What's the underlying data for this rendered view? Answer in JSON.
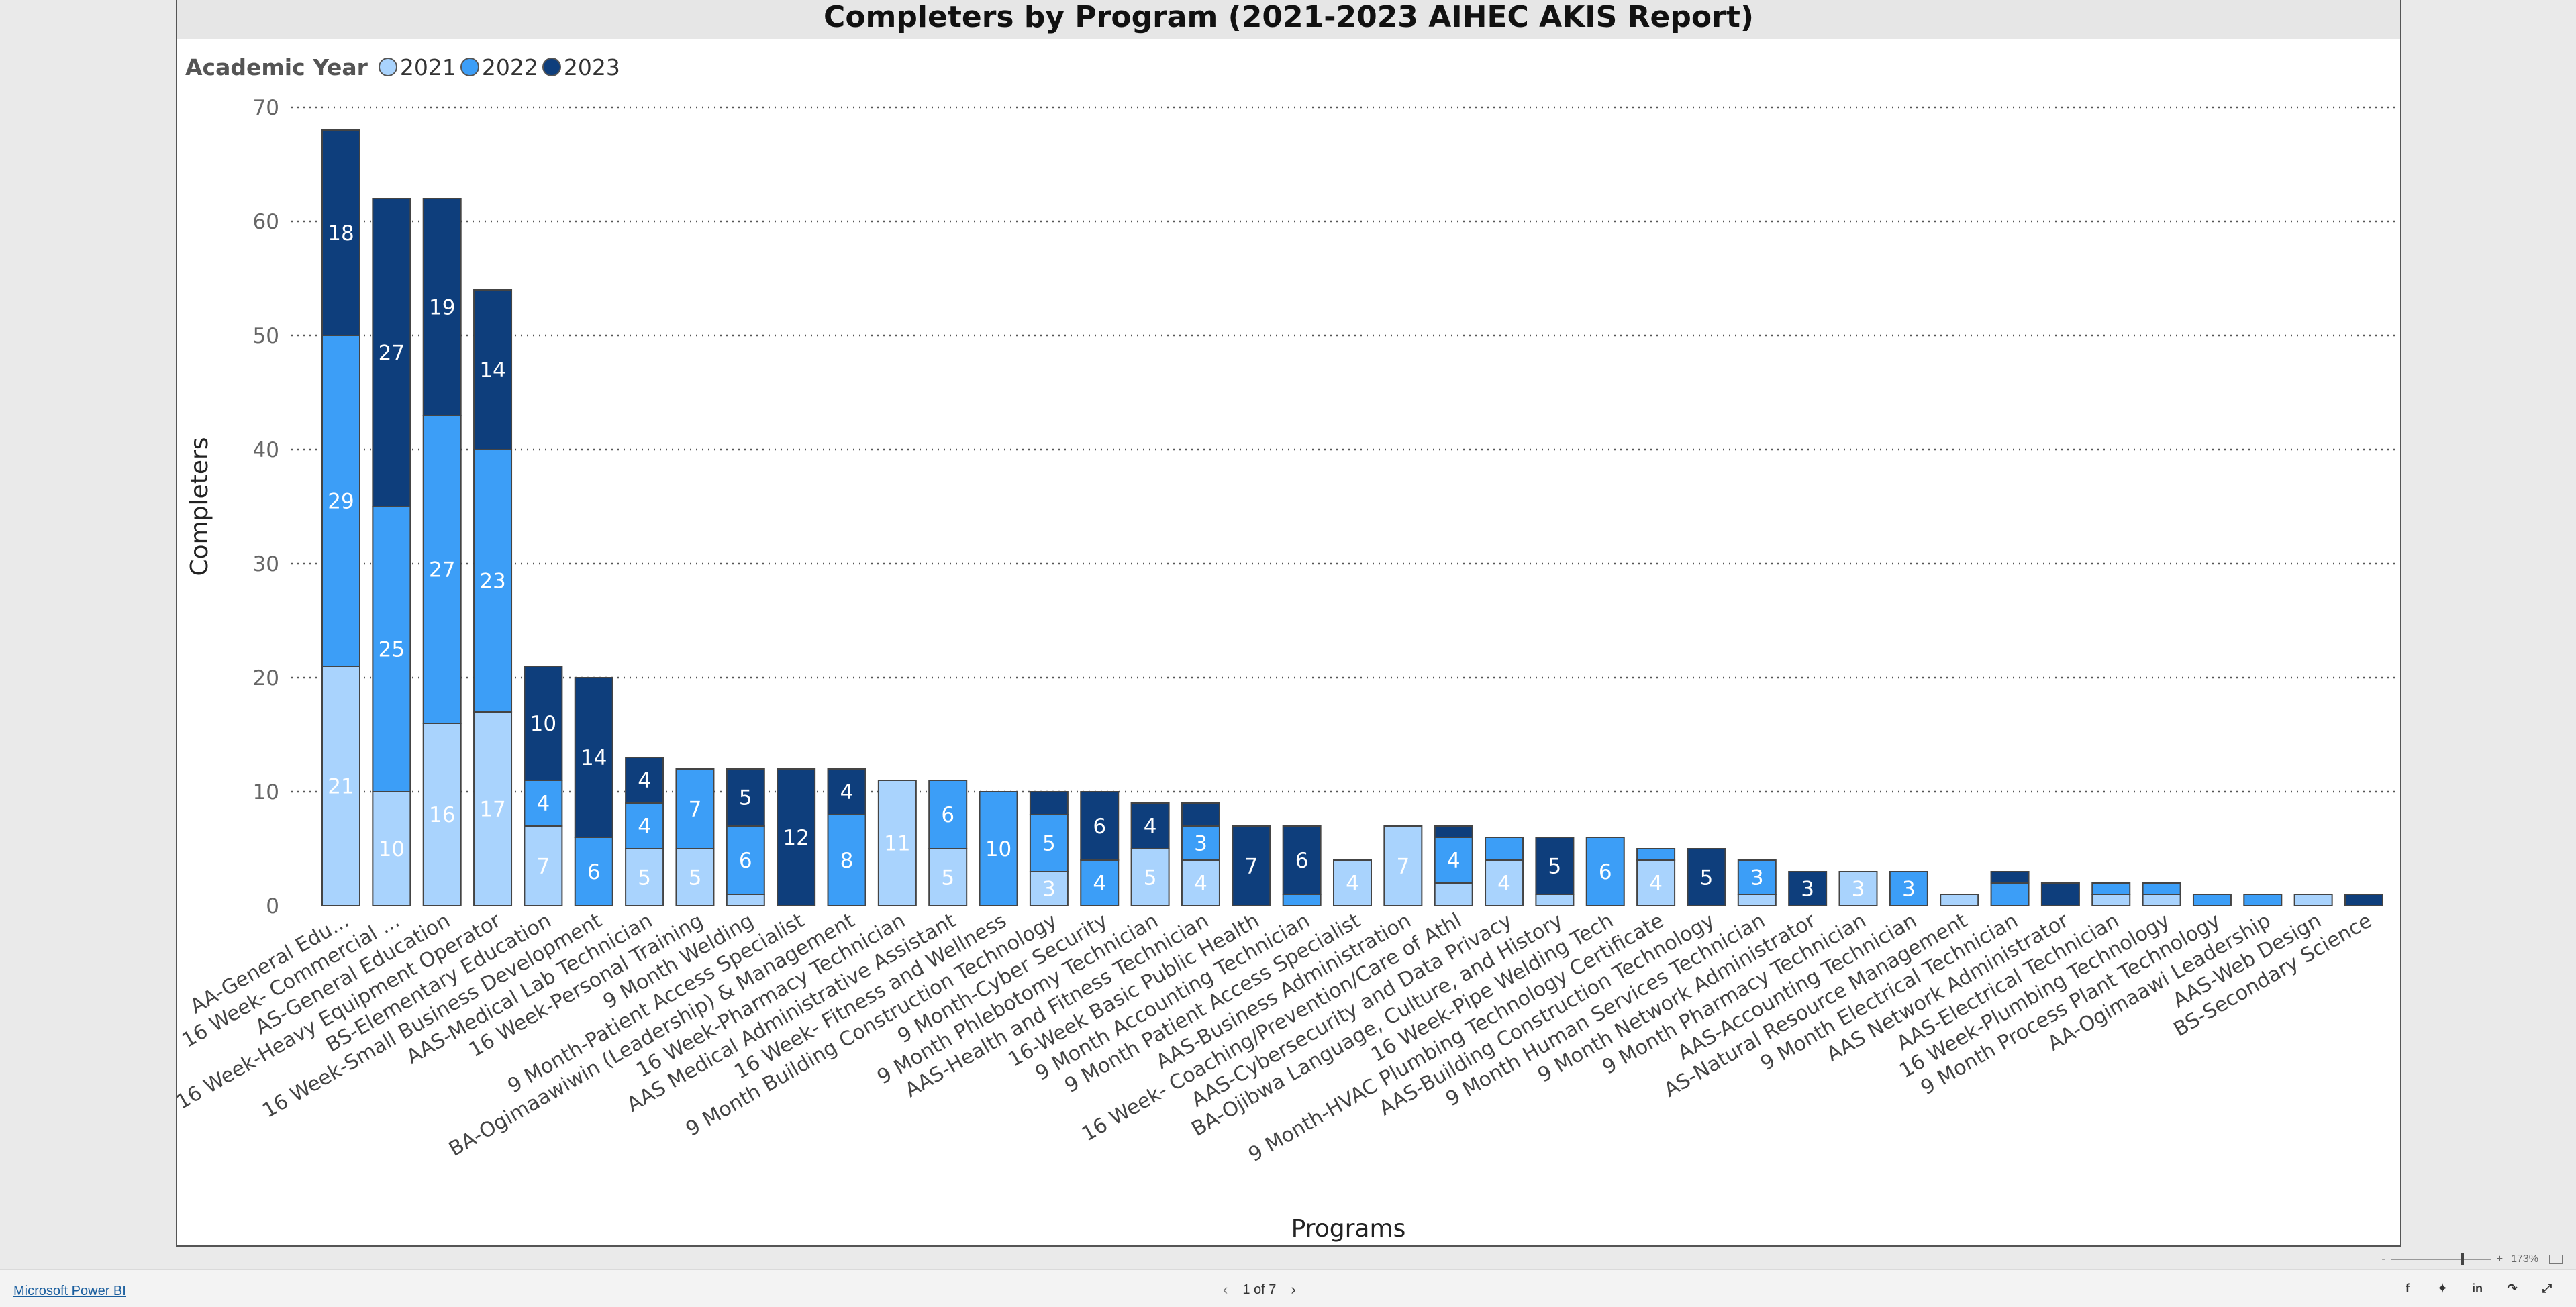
{
  "report": {
    "title": "Completers by Program (2021-2023 AIHEC AKIS Report)"
  },
  "legend": {
    "title": "Academic Year",
    "items": [
      {
        "label": "2021",
        "color": "#a9d3fd"
      },
      {
        "label": "2022",
        "color": "#3c9ef7"
      },
      {
        "label": "2023",
        "color": "#0e3e7c"
      }
    ]
  },
  "chart_data": {
    "type": "bar",
    "stacked": true,
    "title": "Completers by Program (2021-2023 AIHEC AKIS Report)",
    "xlabel": "Programs",
    "ylabel": "Completers",
    "ylim": [
      0,
      70
    ],
    "yticks": [
      0,
      10,
      20,
      30,
      40,
      50,
      60,
      70
    ],
    "grid": true,
    "legend_position": "top-left",
    "categories": [
      "AA-General Edu...",
      "16 Week- Commercial ...",
      "AS-General Education",
      "16 Week-Heavy Equipment Operator",
      "BS-Elementary Education",
      "16 Week-Small Business Development",
      "AAS-Medical Lab Technician",
      "16 Week-Personal Training",
      "9 Month Welding",
      "9 Month-Patient Access Specialist",
      "BA-Ogimaawiwin (Leadership) & Management",
      "16 Week-Pharmacy Technician",
      "AAS Medical Administrative Assistant",
      "16 Week- Fitness and Wellness",
      "9 Month Building Construction Technology",
      "9 Month-Cyber Security",
      "9 Month Phlebotomy Technician",
      "AAS-Health and Fitness Technician",
      "16-Week Basic Public Health",
      "9 Month Accounting Technician",
      "9 Month Patient Access Specialist",
      "AAS-Business Administration",
      "16 Week- Coaching/Prevention/Care of Athl",
      "AAS-Cybersecurity and Data Privacy",
      "BA-Ojibwa Language, Culture, and History",
      "16 Week-Pipe Welding Tech",
      "9 Month-HVAC Plumbing Technology Certificate",
      "AAS-Building Construction Technology",
      "9 Month Human Services Technician",
      "9 Month Network Administrator",
      "9 Month Pharmacy Technician",
      "AAS-Accounting Technician",
      "AS-Natural Resource Management",
      "9 Month Electrical Technician",
      "AAS Network Administrator",
      "AAS-Electrical Technician",
      "16 Week-Plumbing Technology",
      "9 Month Process Plant Technology",
      "AA-Ogimaawi Leadership",
      "AAS-Web Design",
      "BS-Secondary Science"
    ],
    "series": [
      {
        "name": "2021",
        "values": [
          21,
          10,
          16,
          17,
          7,
          0,
          5,
          5,
          1,
          0,
          0,
          11,
          5,
          0,
          3,
          0,
          5,
          4,
          0,
          0,
          4,
          7,
          2,
          4,
          1,
          0,
          4,
          0,
          1,
          0,
          3,
          0,
          1,
          0,
          0,
          1,
          1,
          0,
          0,
          1,
          0
        ]
      },
      {
        "name": "2022",
        "values": [
          29,
          25,
          27,
          23,
          4,
          6,
          4,
          7,
          6,
          0,
          8,
          0,
          6,
          10,
          5,
          4,
          0,
          3,
          0,
          1,
          0,
          0,
          4,
          2,
          0,
          6,
          1,
          0,
          3,
          0,
          0,
          3,
          0,
          2,
          0,
          1,
          1,
          1,
          1,
          0,
          0
        ]
      },
      {
        "name": "2023",
        "values": [
          18,
          27,
          19,
          14,
          10,
          14,
          4,
          0,
          5,
          12,
          4,
          0,
          0,
          0,
          2,
          6,
          4,
          2,
          7,
          6,
          0,
          0,
          1,
          0,
          5,
          0,
          0,
          5,
          0,
          3,
          0,
          0,
          0,
          1,
          2,
          0,
          0,
          0,
          0,
          0,
          1
        ]
      }
    ]
  },
  "footer": {
    "powerbi_link": "Microsoft Power BI",
    "page_indicator": "1 of 7",
    "zoom": "173%",
    "zoom_minus": "-",
    "zoom_plus": "+"
  }
}
